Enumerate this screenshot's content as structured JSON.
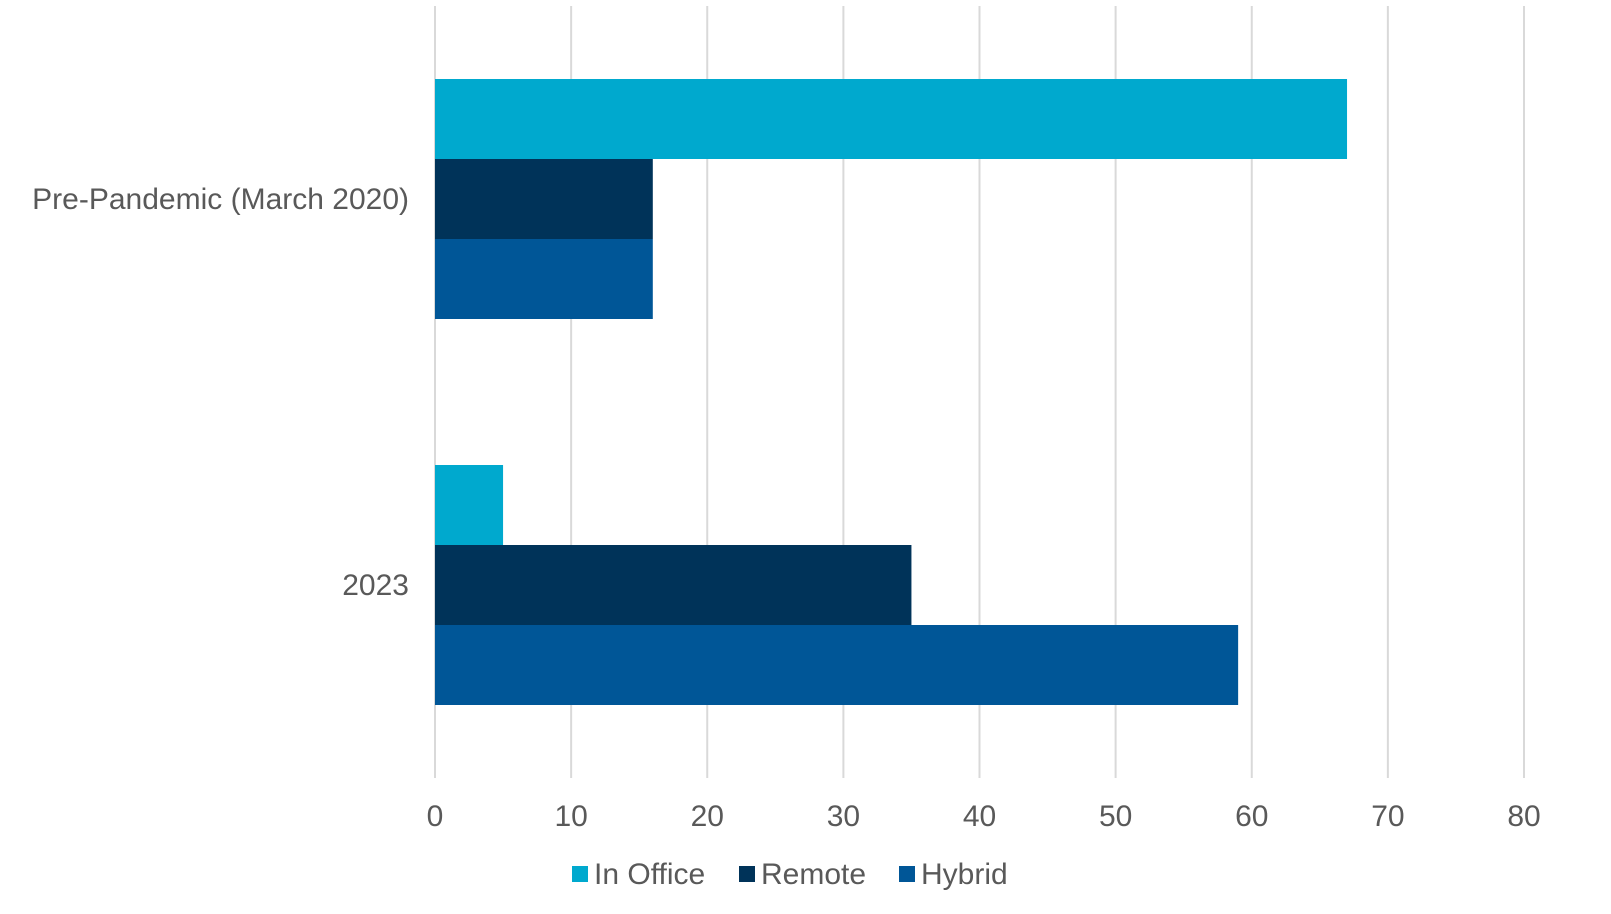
{
  "chart_data": {
    "type": "bar",
    "orientation": "horizontal",
    "categories": [
      "Pre-Pandemic (March 2020)",
      "2023"
    ],
    "series": [
      {
        "name": "In Office",
        "color": "#00A9CE",
        "values": [
          67,
          5
        ]
      },
      {
        "name": "Remote",
        "color": "#003359",
        "values": [
          16,
          35
        ]
      },
      {
        "name": "Hybrid",
        "color": "#005697",
        "values": [
          16,
          59
        ]
      }
    ],
    "x_ticks": [
      "0",
      "10",
      "20",
      "30",
      "40",
      "50",
      "60",
      "70",
      "80"
    ],
    "xlim": [
      0,
      80
    ],
    "grid": "vertical",
    "legend_position": "bottom",
    "title": "",
    "xlabel": "",
    "ylabel": ""
  }
}
